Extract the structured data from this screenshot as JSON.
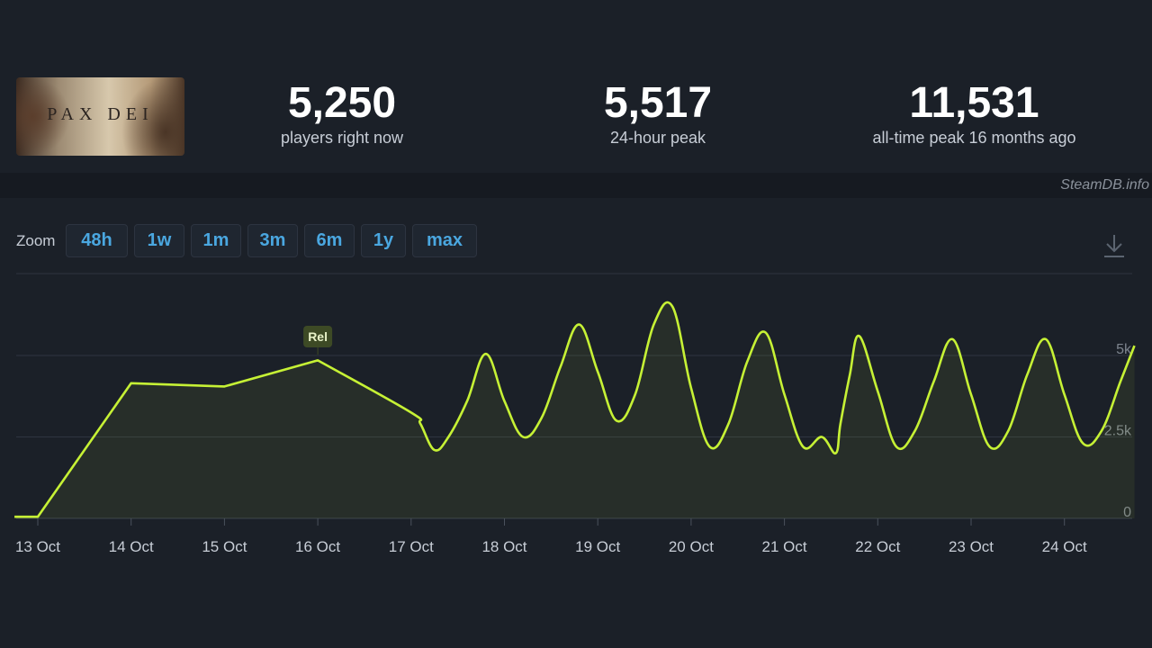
{
  "game": {
    "logo_text": "PAX DEI"
  },
  "stats": {
    "current": {
      "value": "5,250",
      "label": "players right now"
    },
    "peak_24h": {
      "value": "5,517",
      "label": "24-hour peak"
    },
    "all_time": {
      "value": "11,531",
      "label": "all-time peak 16 months ago"
    }
  },
  "credit": "SteamDB.info",
  "zoom": {
    "label": "Zoom",
    "options": [
      "48h",
      "1w",
      "1m",
      "3m",
      "6m",
      "1y",
      "max"
    ]
  },
  "icons": {
    "download": "download-icon"
  },
  "colors": {
    "background": "#1b2028",
    "line": "#c6f135",
    "accent": "#4aa7e0",
    "grid": "#2f3540",
    "annotation_bg": "#3d4a25"
  },
  "chart_data": {
    "type": "line",
    "title": "",
    "xlabel": "",
    "ylabel": "",
    "ylim": [
      0,
      5000
    ],
    "y_ticks": [
      {
        "value": 0,
        "label": "0"
      },
      {
        "value": 2500,
        "label": "2.5k"
      },
      {
        "value": 5000,
        "label": "5k"
      }
    ],
    "x_ticks": [
      "13 Oct",
      "14 Oct",
      "15 Oct",
      "16 Oct",
      "17 Oct",
      "18 Oct",
      "19 Oct",
      "20 Oct",
      "21 Oct",
      "22 Oct",
      "23 Oct",
      "24 Oct"
    ],
    "annotations": [
      {
        "label": "Rel",
        "x": 3.0
      }
    ],
    "grid": true,
    "series": [
      {
        "x": [
          -0.25,
          0.0,
          1.0,
          2.0,
          3.0,
          4.0,
          4.1,
          4.25,
          4.4,
          4.6,
          4.8,
          5.0,
          5.2,
          5.4,
          5.6,
          5.8,
          6.0,
          6.2,
          6.4,
          6.6,
          6.8,
          7.0,
          7.2,
          7.4,
          7.6,
          7.8,
          8.0,
          8.2,
          8.4,
          8.55,
          8.6,
          8.7,
          8.8,
          9.0,
          9.2,
          9.4,
          9.6,
          9.8,
          10.0,
          10.2,
          10.4,
          10.6,
          10.8,
          11.0,
          11.2,
          11.4,
          11.6,
          11.75
        ],
        "y": [
          50,
          50,
          4150,
          4050,
          4850,
          3250,
          2900,
          2100,
          2500,
          3600,
          5050,
          3600,
          2500,
          3100,
          4650,
          5950,
          4500,
          3000,
          3800,
          5950,
          6500,
          4000,
          2200,
          2900,
          4800,
          5700,
          3800,
          2200,
          2500,
          2000,
          2900,
          4400,
          5600,
          3900,
          2200,
          2700,
          4200,
          5500,
          3800,
          2200,
          2700,
          4400,
          5500,
          3800,
          2300,
          2700,
          4200,
          5300
        ]
      }
    ]
  }
}
